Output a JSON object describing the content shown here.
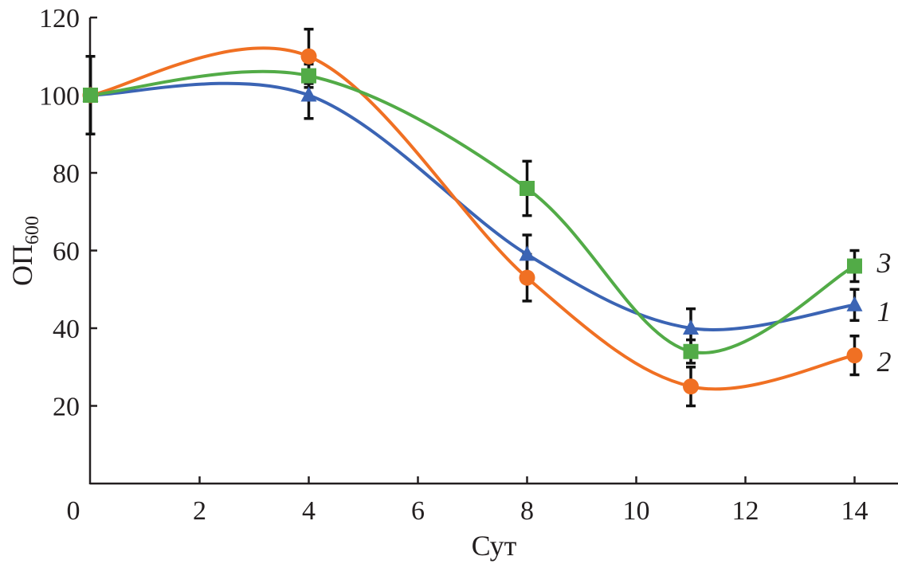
{
  "chart_data": {
    "type": "line",
    "xlabel": "Сут",
    "ylabel": "ОП",
    "ylabel_subscript": "600",
    "xlim": [
      0,
      15
    ],
    "ylim": [
      0,
      120
    ],
    "xticks": [
      "0",
      "2",
      "4",
      "6",
      "8",
      "10",
      "12",
      "14"
    ],
    "yticks": [
      "20",
      "40",
      "60",
      "80",
      "100",
      "120"
    ],
    "grid": false,
    "x": [
      0,
      4,
      8,
      11,
      14
    ],
    "series": [
      {
        "name": "1",
        "color": "#3b64b4",
        "marker": "triangle",
        "values": [
          100,
          100,
          59,
          40,
          46
        ],
        "errors": [
          10,
          6,
          5,
          5,
          4
        ]
      },
      {
        "name": "2",
        "color": "#f07023",
        "marker": "circle",
        "values": [
          100,
          110,
          53,
          25,
          33
        ],
        "errors": [
          10,
          7,
          6,
          5,
          5
        ]
      },
      {
        "name": "3",
        "color": "#52ab47",
        "marker": "square",
        "values": [
          100,
          105,
          76,
          34,
          56
        ],
        "errors": [
          10,
          3,
          7,
          3,
          4
        ]
      }
    ]
  }
}
